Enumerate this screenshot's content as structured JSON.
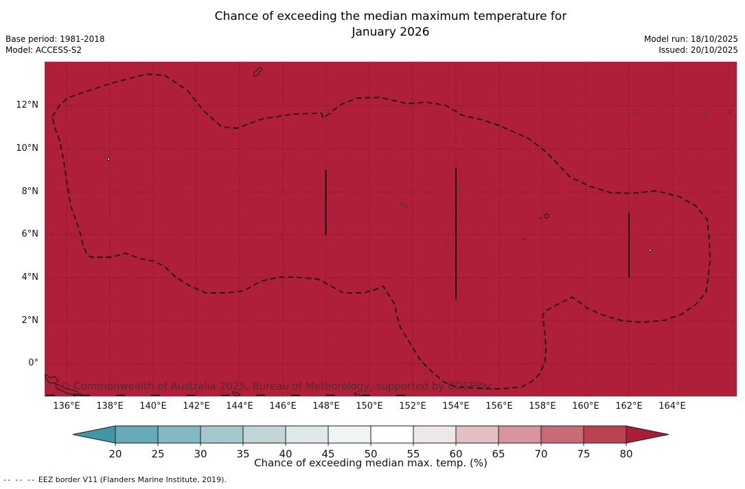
{
  "header": {
    "title_line1": "Chance of exceeding the median maximum temperature for",
    "title_line2": "January 2026",
    "base_period": "Base period: 1981-2018",
    "model": "Model: ACCESS-S2",
    "model_run": "Model run: 18/10/2025",
    "issued": "Issued: 20/10/2025"
  },
  "map": {
    "watermark": "© Commonwealth of Australia 2025, Bureau of Meteorology, supported by COSPPac",
    "y_tick_labels": [
      "12°N",
      "10°N",
      "8°N",
      "6°N",
      "4°N",
      "2°N",
      "0°"
    ],
    "x_tick_labels": [
      "136°E",
      "138°E",
      "140°E",
      "142°E",
      "144°E",
      "146°E",
      "148°E",
      "150°E",
      "152°E",
      "154°E",
      "156°E",
      "158°E",
      "160°E",
      "162°E",
      "164°E"
    ]
  },
  "colorbar": {
    "ticks": [
      "20",
      "25",
      "30",
      "35",
      "40",
      "45",
      "50",
      "55",
      "60",
      "65",
      "70",
      "75",
      "80"
    ],
    "segment_colors": [
      "#65abb8",
      "#83b9c2",
      "#a3c7cd",
      "#c2d6d8",
      "#dfe8e9",
      "#f1f4f4",
      "#fefefe",
      "#ede7e7",
      "#e3bec3",
      "#d8959f",
      "#c96b76",
      "#bb4153"
    ],
    "under_color": "#4097a6",
    "over_color": "#ab1d36",
    "label": "Chance of exceeding median max. temp. (%)"
  },
  "footnote": {
    "marker": "--  --  --",
    "text": "EEZ border V11 (Flanders Marine Institute, 2019)."
  },
  "colors": {
    "map_fill": "#b01f3a",
    "grid": "rgba(0,0,0,0.5)",
    "eez_border": "#0a0a0a"
  },
  "chart_data": {
    "type": "heatmap",
    "title": "Chance of exceeding the median maximum temperature for January 2026",
    "base_period": "1981-2018",
    "model": "ACCESS-S2",
    "model_run": "18/10/2025",
    "issued": "20/10/2025",
    "x_axis": {
      "label_units": "°E",
      "ticks": [
        136,
        138,
        140,
        142,
        144,
        146,
        148,
        150,
        152,
        154,
        156,
        158,
        160,
        162,
        164
      ],
      "range": [
        135,
        167
      ]
    },
    "y_axis": {
      "label_units": "°N",
      "ticks": [
        12,
        10,
        8,
        6,
        4,
        2,
        0
      ],
      "range": [
        -1.5,
        14
      ]
    },
    "colorbar": {
      "label": "Chance of exceeding median max. temp. (%)",
      "ticks": [
        20,
        25,
        30,
        35,
        40,
        45,
        50,
        55,
        60,
        65,
        70,
        75,
        80
      ],
      "under_arrow": "<20",
      "over_arrow": ">80",
      "legend_position": "bottom"
    },
    "field_values": "uniform: entire mapped region is shaded in the >80% class (dark red), i.e. chance of exceeding median maximum temperature is greater than 80% everywhere shown",
    "uniform_value_percent": ">80",
    "overlays": [
      "dashed EEZ border outline around Palau / Federated States of Micronesia region",
      "solid vertical EEZ segment lines near 148°E (6-9°N), 154°E (3-9°N), 162°E (4-7°N)",
      "small island outlines (Guam, Yap, Chuuk, Pohnpei, Kosrae, PNG coast at bottom left)"
    ],
    "grid": "dotted graticule every 2 degrees"
  }
}
